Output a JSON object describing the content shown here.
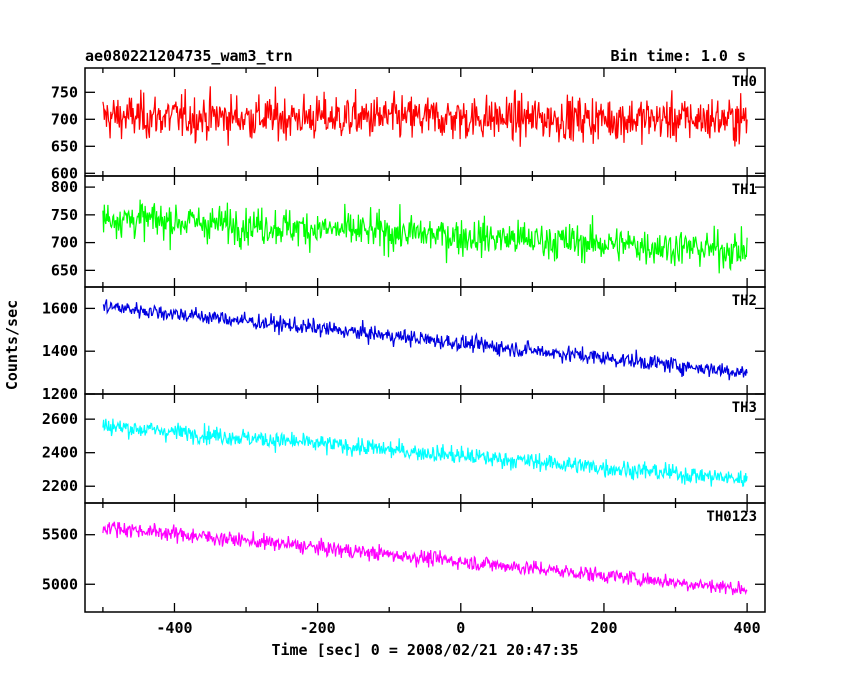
{
  "header": {
    "title": "ae080221204735_wam3_trn",
    "bin_time": "Bin time: 1.0 s"
  },
  "chart_data": {
    "type": "line",
    "title": "ae080221204735_wam3_trn",
    "xlabel": "Time [sec] 0 = 2008/02/21 20:47:35",
    "ylabel": "Counts/sec",
    "xlim": [
      -525,
      425
    ],
    "x_ticks": [
      -400,
      -200,
      0,
      200,
      400
    ],
    "x_range": [
      -500,
      400
    ],
    "panels": [
      {
        "name": "TH0",
        "color": "#ff0000",
        "ylim": [
          595,
          795
        ],
        "y_ticks": [
          600,
          650,
          700,
          750
        ],
        "trend_start": 705,
        "trend_end": 700,
        "noise": 35
      },
      {
        "name": "TH1",
        "color": "#00ff00",
        "ylim": [
          620,
          820
        ],
        "y_ticks": [
          650,
          700,
          750,
          800
        ],
        "trend_start": 745,
        "trend_end": 685,
        "noise": 28
      },
      {
        "name": "TH2",
        "color": "#0000e0",
        "ylim": [
          1200,
          1700
        ],
        "y_ticks": [
          1200,
          1400,
          1600
        ],
        "trend_start": 1610,
        "trend_end": 1300,
        "noise": 32
      },
      {
        "name": "TH3",
        "color": "#00ffff",
        "ylim": [
          2100,
          2750
        ],
        "y_ticks": [
          2200,
          2400,
          2600
        ],
        "trend_start": 2560,
        "trend_end": 2240,
        "noise": 45
      },
      {
        "name": "TH0123",
        "color": "#ff00ff",
        "ylim": [
          4720,
          5820
        ],
        "y_ticks": [
          5000,
          5500
        ],
        "trend_start": 5580,
        "trend_end": 4950,
        "noise": 65
      }
    ]
  }
}
